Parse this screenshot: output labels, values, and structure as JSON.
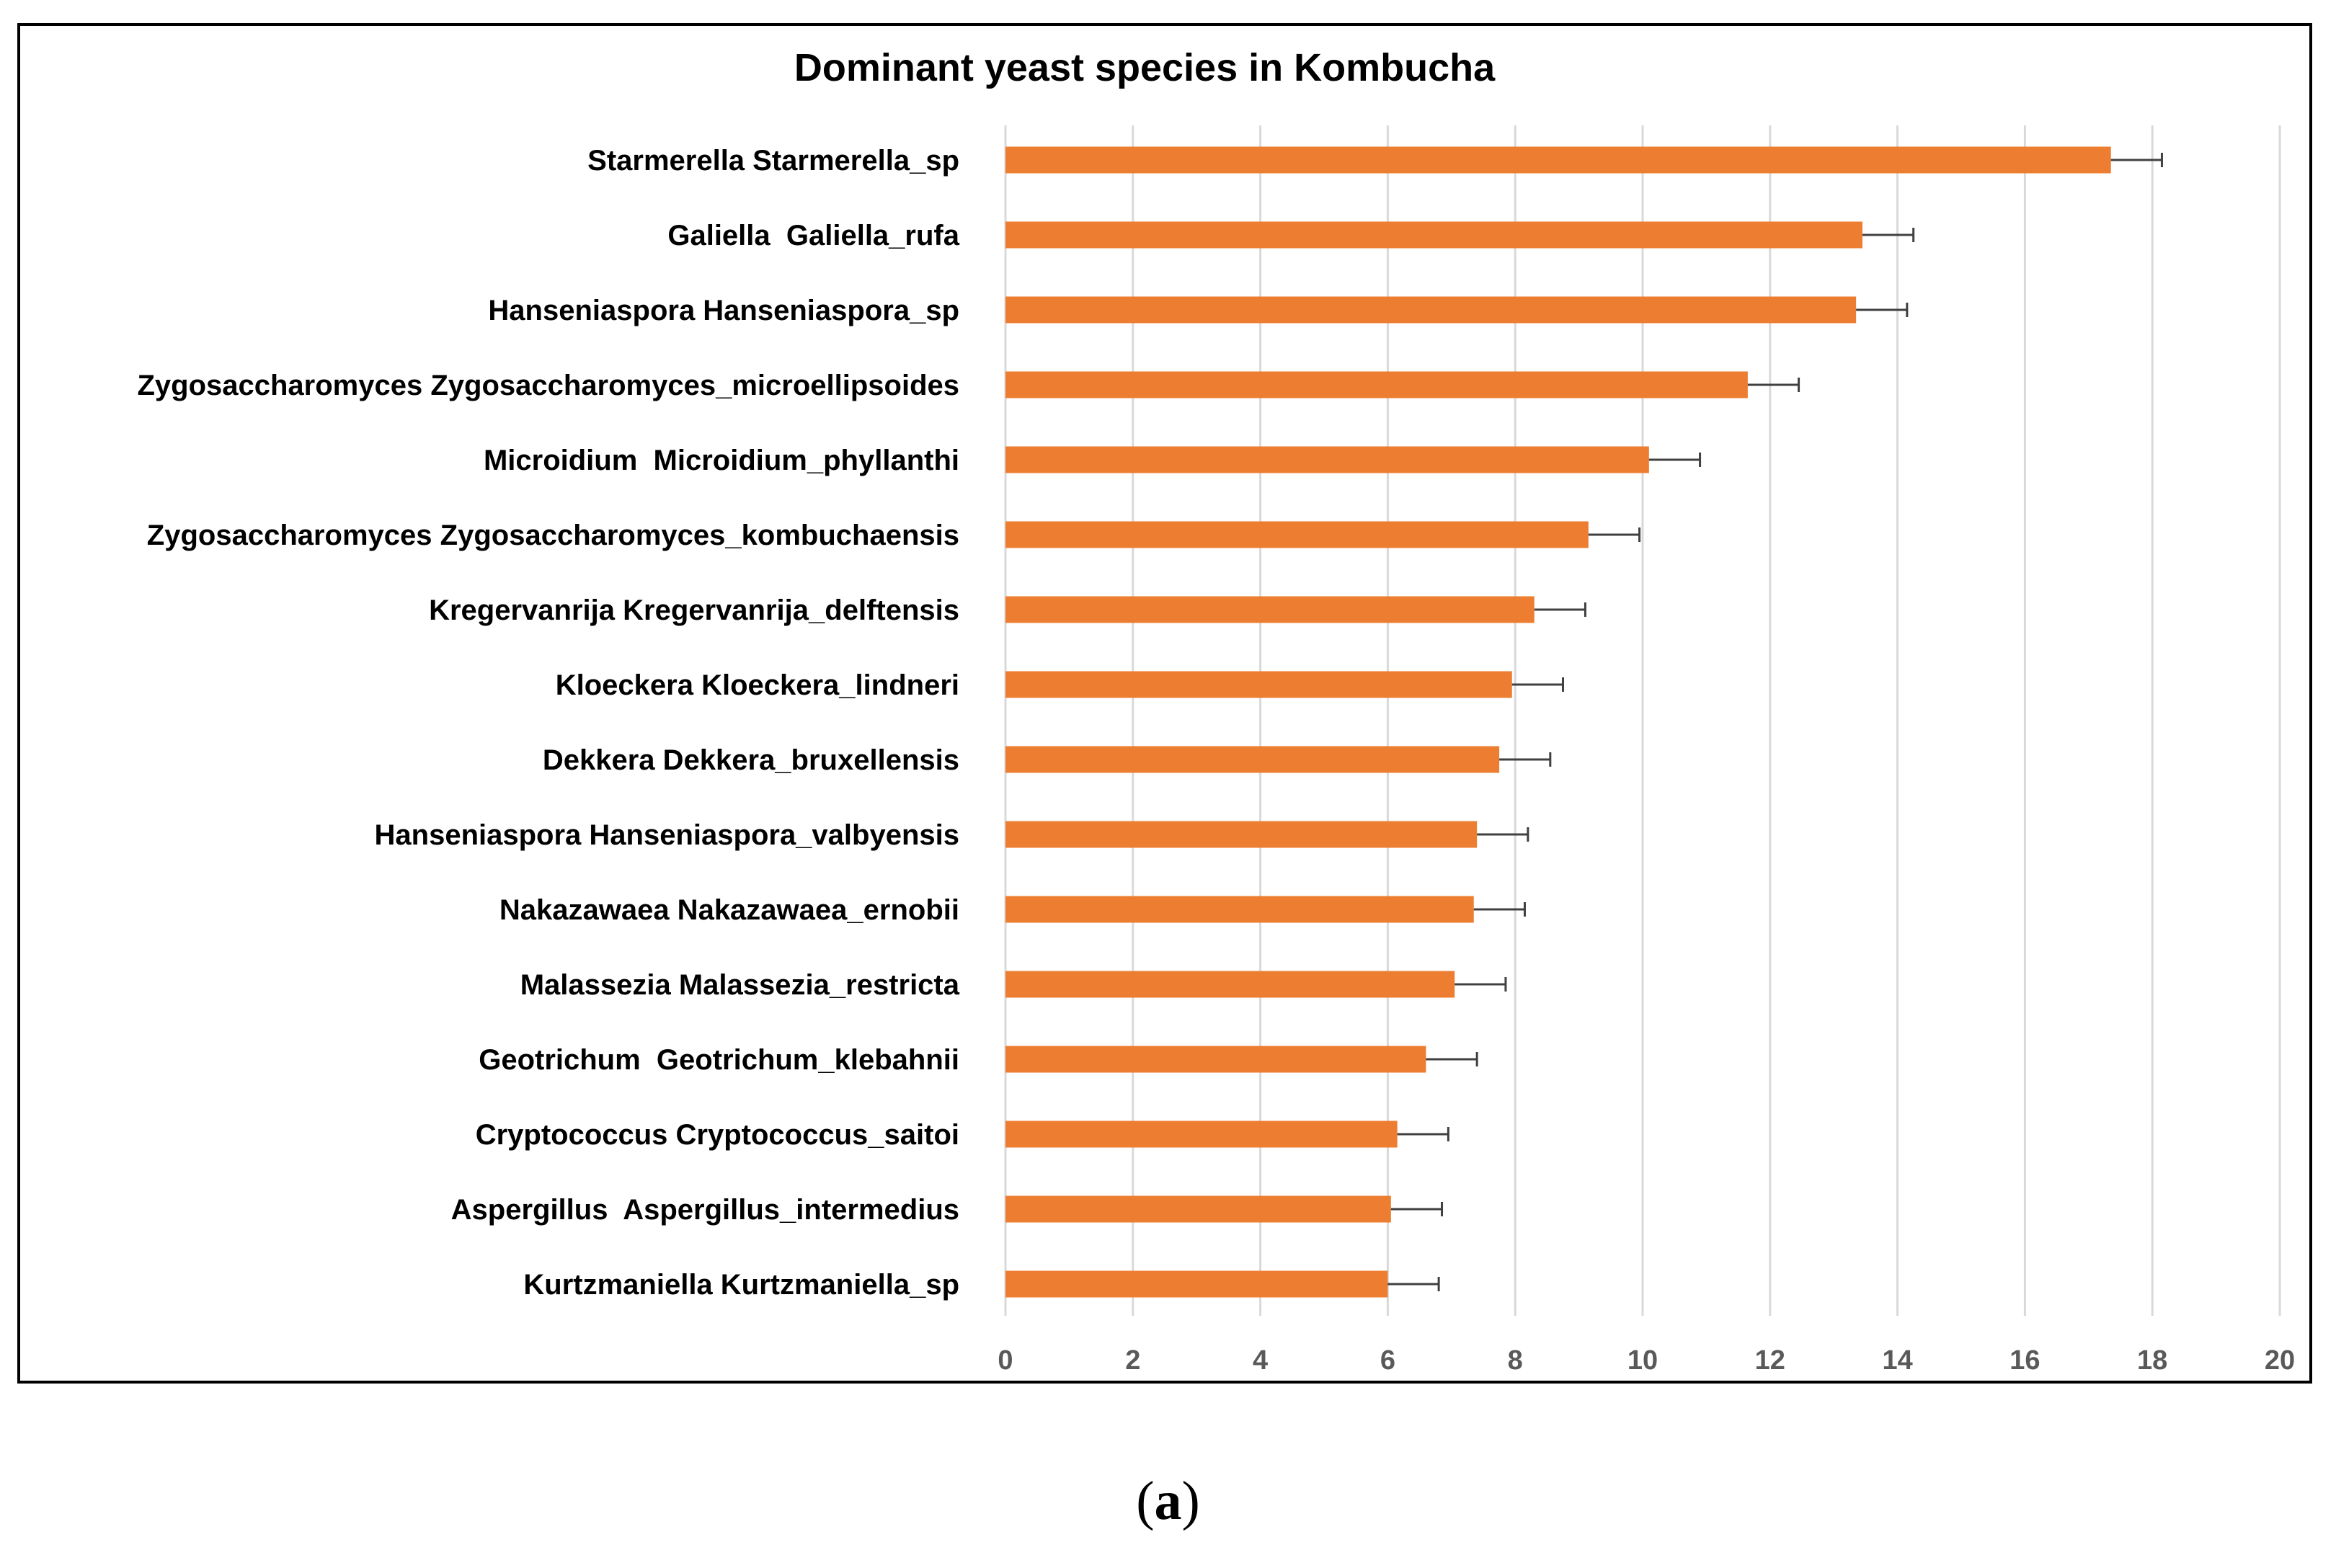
{
  "chart_data": {
    "type": "bar",
    "orientation": "horizontal",
    "title": "Dominant yeast species in Kombucha",
    "xlabel": "",
    "ylabel": "",
    "xlim": [
      0,
      20
    ],
    "xticks": [
      0,
      2,
      4,
      6,
      8,
      10,
      12,
      14,
      16,
      18,
      20
    ],
    "grid": true,
    "legend": "none",
    "bar_color": "#ED7D31",
    "error_bar_color": "#404040",
    "gridline_color": "#D9D9D9",
    "categories": [
      "Starmerella Starmerella_sp",
      "Galiella  Galiella_rufa",
      "Hanseniaspora Hanseniaspora_sp",
      "Zygosaccharomyces Zygosaccharomyces_microellipsoides",
      "Microidium  Microidium_phyllanthi",
      "Zygosaccharomyces Zygosaccharomyces_kombuchaensis",
      "Kregervanrija Kregervanrija_delftensis",
      "Kloeckera Kloeckera_lindneri",
      "Dekkera Dekkera_bruxellensis",
      "Hanseniaspora Hanseniaspora_valbyensis",
      "Nakazawaea Nakazawaea_ernobii",
      "Malassezia Malassezia_restricta",
      "Geotrichum  Geotrichum_klebahnii",
      "Cryptococcus Cryptococcus_saitoi",
      "Aspergillus  Aspergillus_intermedius",
      "Kurtzmaniella Kurtzmaniella_sp"
    ],
    "values": [
      17.35,
      13.45,
      13.35,
      11.65,
      10.1,
      9.15,
      8.3,
      7.95,
      7.75,
      7.4,
      7.35,
      7.05,
      6.6,
      6.15,
      6.05,
      6.0
    ],
    "errors": [
      0.8,
      0.8,
      0.8,
      0.8,
      0.8,
      0.8,
      0.8,
      0.8,
      0.8,
      0.8,
      0.8,
      0.8,
      0.8,
      0.8,
      0.8,
      0.8
    ]
  },
  "figure": {
    "caption_open": "(",
    "caption_letter": "a",
    "caption_close": ")"
  }
}
